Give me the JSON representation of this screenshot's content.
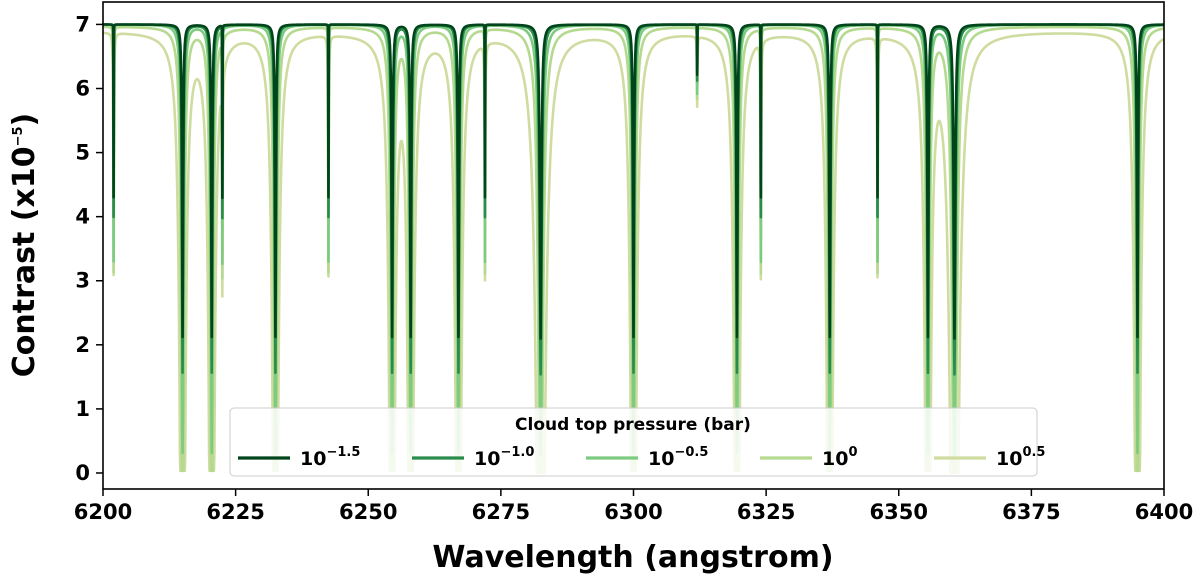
{
  "chart_data": {
    "type": "line",
    "title": "",
    "xlabel": "Wavelength (angstrom)",
    "ylabel": "Contrast (x10",
    "ylabel_exponent": "−5",
    "ylabel_close": ")",
    "xlim": [
      6200,
      6400
    ],
    "ylim": [
      -0.25,
      7.35
    ],
    "xticks": [
      6200,
      6225,
      6250,
      6275,
      6300,
      6325,
      6350,
      6375,
      6400
    ],
    "yticks": [
      0,
      1,
      2,
      3,
      4,
      5,
      6,
      7
    ],
    "grid": false,
    "baseline": 7.0,
    "lines": [
      {
        "center": 6202.0,
        "kind": "narrow"
      },
      {
        "center": 6215.0,
        "kind": "wide"
      },
      {
        "center": 6220.5,
        "kind": "wide"
      },
      {
        "center": 6222.5,
        "kind": "narrow"
      },
      {
        "center": 6232.5,
        "kind": "wide"
      },
      {
        "center": 6242.5,
        "kind": "narrow"
      },
      {
        "center": 6254.5,
        "kind": "wide"
      },
      {
        "center": 6258.0,
        "kind": "wide"
      },
      {
        "center": 6267.0,
        "kind": "wide"
      },
      {
        "center": 6272.0,
        "kind": "narrow"
      },
      {
        "center": 6282.5,
        "kind": "strong"
      },
      {
        "center": 6300.0,
        "kind": "wide"
      },
      {
        "center": 6312.0,
        "kind": "tiny"
      },
      {
        "center": 6319.5,
        "kind": "wide"
      },
      {
        "center": 6324.0,
        "kind": "narrow"
      },
      {
        "center": 6337.0,
        "kind": "wide"
      },
      {
        "center": 6346.0,
        "kind": "narrow"
      },
      {
        "center": 6355.5,
        "kind": "wide"
      },
      {
        "center": 6360.5,
        "kind": "strong"
      },
      {
        "center": 6395.0,
        "kind": "wide"
      }
    ],
    "legend": {
      "title": "Cloud top pressure (bar)",
      "location": "lower-center"
    },
    "series": [
      {
        "name_base": "10",
        "name_exp": "−1.5",
        "pressure_bar": 0.0316,
        "color": "#00441b",
        "broadening": 0.25,
        "level": 7.0
      },
      {
        "name_base": "10",
        "name_exp": "−1.0",
        "pressure_bar": 0.1,
        "color": "#2a8c4a",
        "broadening": 0.45,
        "level": 7.0
      },
      {
        "name_base": "10",
        "name_exp": "−0.5",
        "pressure_bar": 0.316,
        "color": "#7ccb7f",
        "broadening": 0.9,
        "level": 7.0
      },
      {
        "name_base": "10",
        "name_exp": "0",
        "pressure_bar": 1.0,
        "color": "#b5d98f",
        "broadening": 1.8,
        "level": 6.97
      },
      {
        "name_base": "10",
        "name_exp": "0.5",
        "pressure_bar": 3.16,
        "color": "#cfdca0",
        "broadening": 4.0,
        "level": 6.9
      }
    ]
  }
}
